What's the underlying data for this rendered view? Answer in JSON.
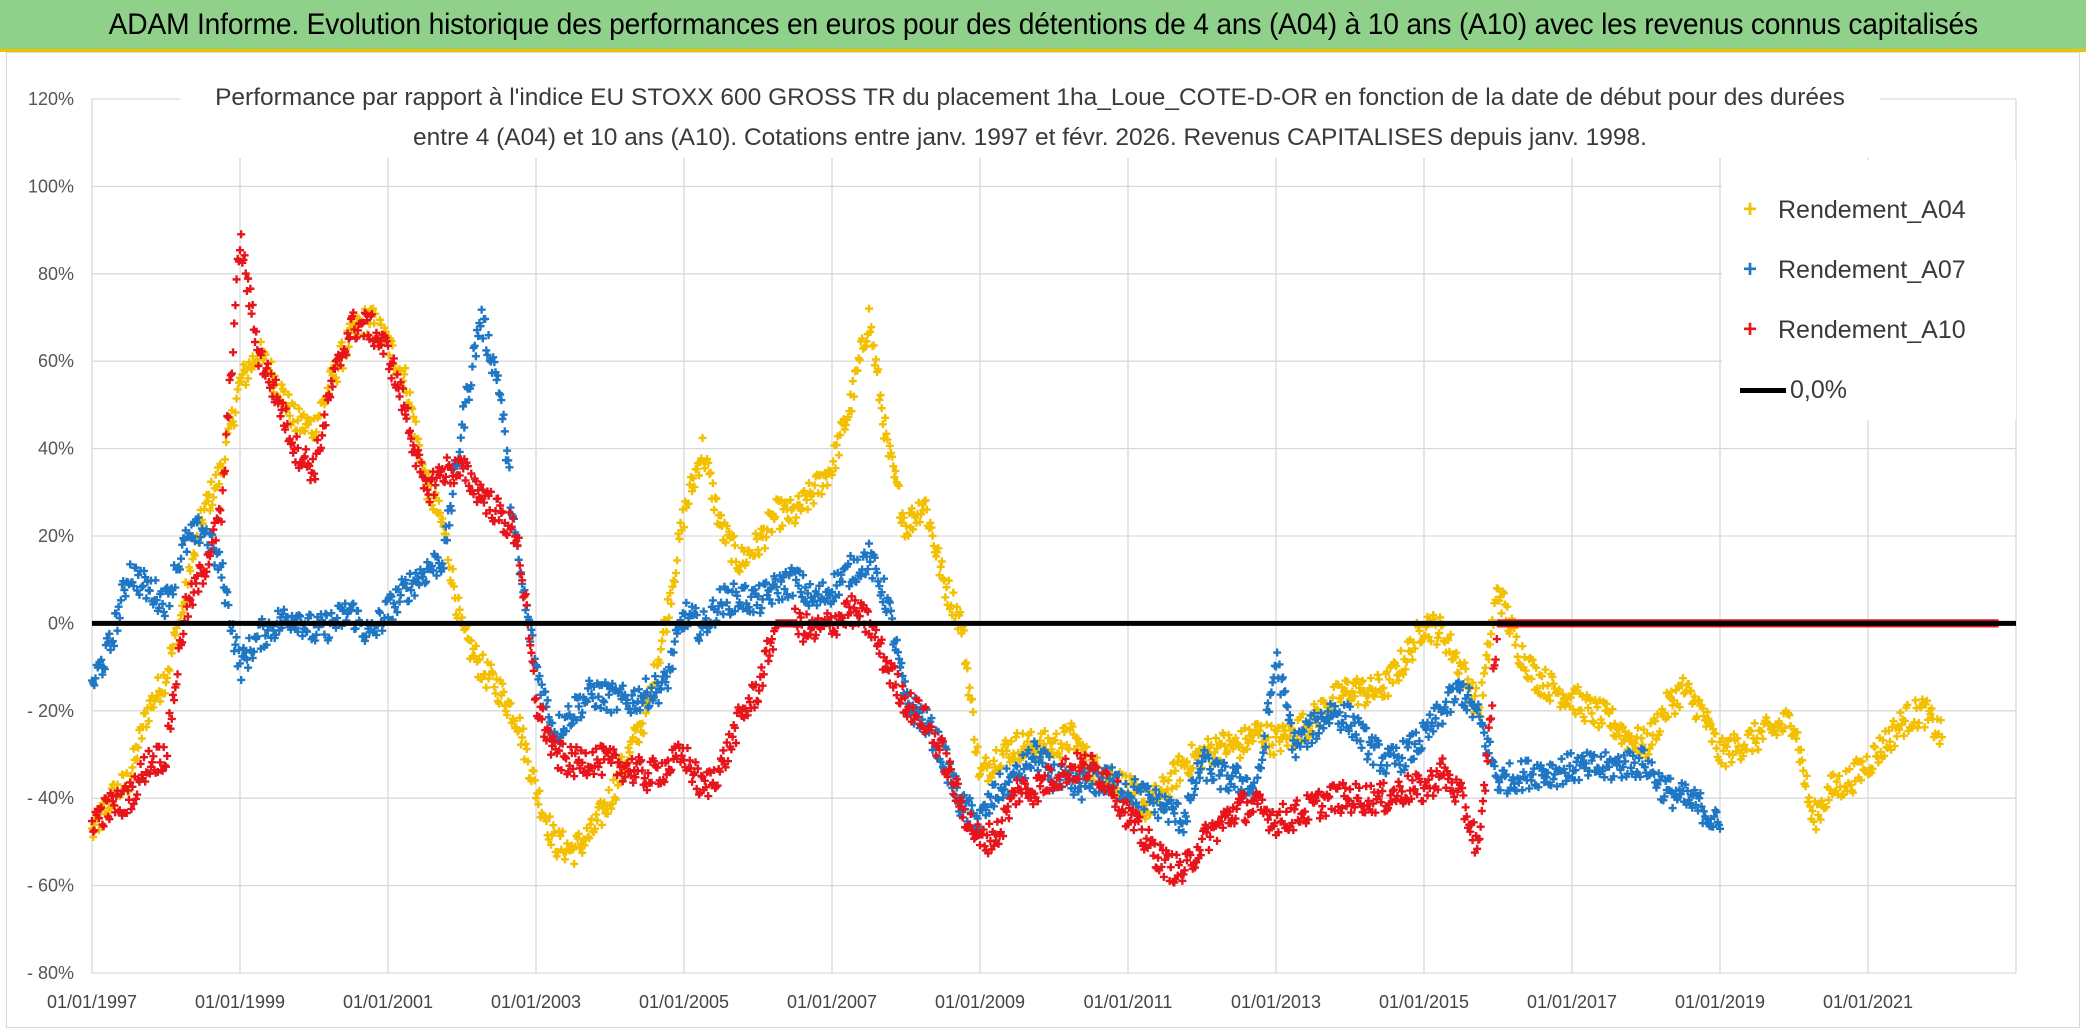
{
  "banner": {
    "title": "ADAM Informe. Evolution historique des performances en euros pour des détentions de 4 ans (A04) à 10 ans (A10) avec les revenus connus capitalisés"
  },
  "colors": {
    "banner_bg": "#8fd18a",
    "banner_border": "#f2c200",
    "A04": "#f2c000",
    "A07": "#1f77c4",
    "A10": "#e8141c",
    "zero_line": "#000000",
    "grid": "#d9d9d9"
  },
  "chart_data": {
    "type": "scatter",
    "title_lines": [
      "Performance par rapport à l'indice EU STOXX 600 GROSS TR  du placement 1ha_Loue_COTE-D-OR en fonction de la date de début pour des durées",
      "entre 4 (A04) et 10 ans (A10). Cotations entre janv. 1997 et févr. 2026. Revenus CAPITALISES depuis janv. 1998."
    ],
    "xlabel": "",
    "ylabel": "",
    "x_axis": {
      "type": "date",
      "range": [
        "01/01/1997",
        "31/12/2022"
      ],
      "tick_labels": [
        "01/01/1997",
        "01/01/1999",
        "01/01/2001",
        "01/01/2003",
        "01/01/2005",
        "01/01/2007",
        "01/01/2009",
        "01/01/2011",
        "01/01/2013",
        "01/01/2015",
        "01/01/2017",
        "01/01/2019",
        "01/01/2021"
      ]
    },
    "y_axis": {
      "range": [
        -80,
        120
      ],
      "unit": "%",
      "tick_labels": [
        "120%",
        "100%",
        "80%",
        "60%",
        "40%",
        "20%",
        "0%",
        "- 20%",
        "- 40%",
        "- 60%",
        "- 80%"
      ]
    },
    "grid": "horizontal and vertical",
    "legend_position": "top-right",
    "series": [
      {
        "name": "Rendement_A04",
        "marker": "+",
        "x": [
          1997.0,
          1997.25,
          1997.5,
          1997.75,
          1998.0,
          1998.25,
          1998.5,
          1998.75,
          1999.0,
          1999.25,
          1999.5,
          1999.75,
          2000.0,
          2000.25,
          2000.5,
          2000.75,
          2001.0,
          2001.25,
          2001.5,
          2001.75,
          2002.0,
          2002.25,
          2002.5,
          2002.75,
          2003.0,
          2003.25,
          2003.5,
          2003.75,
          2004.0,
          2004.25,
          2004.5,
          2004.75,
          2005.0,
          2005.25,
          2005.5,
          2005.75,
          2006.0,
          2006.25,
          2006.5,
          2006.75,
          2007.0,
          2007.25,
          2007.5,
          2007.75,
          2008.0,
          2008.25,
          2008.5,
          2008.75,
          2009.0,
          2009.25,
          2009.5,
          2009.75,
          2010.0,
          2010.25,
          2010.5,
          2010.75,
          2011.0,
          2011.25,
          2011.5,
          2011.75,
          2012.0,
          2012.25,
          2012.5,
          2012.75,
          2013.0,
          2013.25,
          2013.5,
          2013.75,
          2014.0,
          2014.25,
          2014.5,
          2014.75,
          2015.0,
          2015.25,
          2015.5,
          2015.75,
          2016.0,
          2016.25,
          2016.5,
          2016.75,
          2017.0,
          2017.25,
          2017.5,
          2017.75,
          2018.0,
          2018.25,
          2018.5,
          2018.75,
          2019.0,
          2019.25,
          2019.5,
          2019.75,
          2020.0,
          2020.25,
          2020.5,
          2020.75,
          2021.0,
          2021.25,
          2021.5,
          2021.75,
          2022.0
        ],
        "y": [
          -48,
          -40,
          -36,
          -20,
          -12,
          5,
          25,
          35,
          55,
          62,
          55,
          46,
          45,
          56,
          66,
          70,
          64,
          55,
          33,
          22,
          -2,
          -10,
          -15,
          -22,
          -38,
          -50,
          -52,
          -48,
          -40,
          -30,
          -20,
          0,
          25,
          40,
          22,
          14,
          18,
          25,
          25,
          30,
          36,
          50,
          70,
          40,
          22,
          28,
          10,
          0,
          -35,
          -30,
          -28,
          -28,
          -28,
          -26,
          -33,
          -35,
          -38,
          -42,
          -38,
          -32,
          -30,
          -28,
          -28,
          -25,
          -27,
          -25,
          -22,
          -18,
          -15,
          -16,
          -14,
          -8,
          0,
          -2,
          -10,
          -20,
          8,
          -5,
          -12,
          -15,
          -17,
          -20,
          -22,
          -26,
          -28,
          -20,
          -15,
          -20,
          -30,
          -28,
          -26,
          -24,
          -22,
          -45,
          -38,
          -36,
          -32,
          -27,
          -22,
          -20,
          -26
        ]
      },
      {
        "name": "Rendement_A07",
        "marker": "+",
        "x": [
          1997.0,
          1997.25,
          1997.5,
          1997.75,
          1998.0,
          1998.25,
          1998.5,
          1998.75,
          1999.0,
          1999.25,
          1999.5,
          1999.75,
          2000.0,
          2000.25,
          2000.5,
          2000.75,
          2001.0,
          2001.25,
          2001.5,
          2001.75,
          2002.0,
          2002.25,
          2002.5,
          2002.75,
          2003.0,
          2003.25,
          2003.5,
          2003.75,
          2004.0,
          2004.25,
          2004.5,
          2004.75,
          2005.0,
          2005.25,
          2005.5,
          2005.75,
          2006.0,
          2006.25,
          2006.5,
          2006.75,
          2007.0,
          2007.25,
          2007.5,
          2007.75,
          2008.0,
          2008.25,
          2008.5,
          2008.75,
          2009.0,
          2009.25,
          2009.5,
          2009.75,
          2010.0,
          2010.25,
          2010.5,
          2010.75,
          2011.0,
          2011.25,
          2011.5,
          2011.75,
          2012.0,
          2012.25,
          2012.5,
          2012.75,
          2013.0,
          2013.25,
          2013.5,
          2013.75,
          2014.0,
          2014.25,
          2014.5,
          2014.75,
          2015.0,
          2015.25,
          2015.5,
          2015.75,
          2016.0,
          2016.25,
          2016.5,
          2016.75,
          2017.0,
          2017.25,
          2017.5,
          2017.75,
          2018.0,
          2018.25,
          2018.5,
          2018.75,
          2019.0
        ],
        "y": [
          -14,
          -5,
          12,
          8,
          5,
          18,
          22,
          12,
          -10,
          -3,
          0,
          2,
          -2,
          0,
          3,
          -3,
          3,
          8,
          12,
          15,
          45,
          70,
          55,
          15,
          -10,
          -25,
          -20,
          -16,
          -17,
          -18,
          -16,
          -14,
          2,
          -1,
          5,
          6,
          5,
          8,
          10,
          5,
          8,
          12,
          15,
          5,
          -18,
          -22,
          -30,
          -42,
          -45,
          -38,
          -35,
          -30,
          -35,
          -38,
          -36,
          -36,
          -38,
          -40,
          -42,
          -45,
          -32,
          -35,
          -36,
          -38,
          -8,
          -28,
          -24,
          -20,
          -22,
          -28,
          -32,
          -30,
          -26,
          -20,
          -15,
          -22,
          -36,
          -35,
          -34,
          -34,
          -33,
          -33,
          -33,
          -32,
          -32,
          -38,
          -40,
          -42,
          -47
        ]
      },
      {
        "name": "Rendement_A10",
        "marker": "+",
        "x": [
          1997.0,
          1997.25,
          1997.5,
          1997.75,
          1998.0,
          1998.25,
          1998.5,
          1998.75,
          1999.0,
          1999.25,
          1999.5,
          1999.75,
          2000.0,
          2000.25,
          2000.5,
          2000.75,
          2001.0,
          2001.25,
          2001.5,
          2001.75,
          2002.0,
          2002.25,
          2002.5,
          2002.75,
          2003.0,
          2003.25,
          2003.5,
          2003.75,
          2004.0,
          2004.25,
          2004.5,
          2004.75,
          2005.0,
          2005.25,
          2005.5,
          2005.75,
          2006.0,
          2006.25,
          2006.5,
          2006.75,
          2007.0,
          2007.25,
          2007.5,
          2007.75,
          2008.0,
          2008.25,
          2008.5,
          2008.75,
          2009.0,
          2009.25,
          2009.5,
          2009.75,
          2010.0,
          2010.25,
          2010.5,
          2010.75,
          2011.0,
          2011.25,
          2011.5,
          2011.75,
          2012.0,
          2012.25,
          2012.5,
          2012.75,
          2013.0,
          2013.25,
          2013.5,
          2013.75,
          2014.0,
          2014.25,
          2014.5,
          2014.75,
          2015.0,
          2015.25,
          2015.5,
          2015.75,
          2016.0,
          2016.25,
          2016.5,
          2016.75,
          2017.0,
          2017.25,
          2017.5,
          2017.75,
          2018.0,
          2018.25,
          2018.5,
          2018.75,
          2019.0,
          2019.25,
          2019.5,
          2019.75,
          2020.0,
          2020.25,
          2020.5,
          2020.75,
          2021.0,
          2021.25,
          2021.5,
          2021.75,
          2022.0,
          2022.25,
          2022.5,
          2022.75
        ],
        "y": [
          -45,
          -42,
          -40,
          -32,
          -30,
          2,
          12,
          25,
          88,
          62,
          52,
          40,
          35,
          55,
          68,
          68,
          62,
          48,
          30,
          35,
          35,
          30,
          25,
          20,
          -18,
          -30,
          -32,
          -31,
          -32,
          -33,
          -35,
          -33,
          -30,
          -38,
          -33,
          -22,
          -15,
          0,
          0,
          -2,
          0,
          3,
          0,
          -10,
          -18,
          -22,
          -30,
          -42,
          -50,
          -48,
          -38,
          -38,
          -35,
          -33,
          -33,
          -36,
          -44,
          -50,
          -55,
          -57,
          -50,
          -46,
          -42,
          -42,
          -45,
          -44,
          -42,
          -40,
          -40,
          -40,
          -40,
          -38,
          -38,
          -34,
          -40,
          -52,
          0,
          0,
          0,
          0,
          0,
          0,
          0,
          0,
          0,
          0,
          0,
          0,
          0,
          0,
          0,
          0,
          0,
          0,
          0,
          0,
          0,
          0,
          0,
          0,
          0,
          0,
          0,
          0
        ]
      }
    ],
    "reference_line": {
      "name": "0,0%",
      "y": 0
    },
    "legend": [
      {
        "label": "Rendement_A04",
        "marker": "+"
      },
      {
        "label": "Rendement_A07",
        "marker": "+"
      },
      {
        "label": "Rendement_A10",
        "marker": "+"
      },
      {
        "label": "0,0%",
        "marker": "line"
      }
    ]
  }
}
